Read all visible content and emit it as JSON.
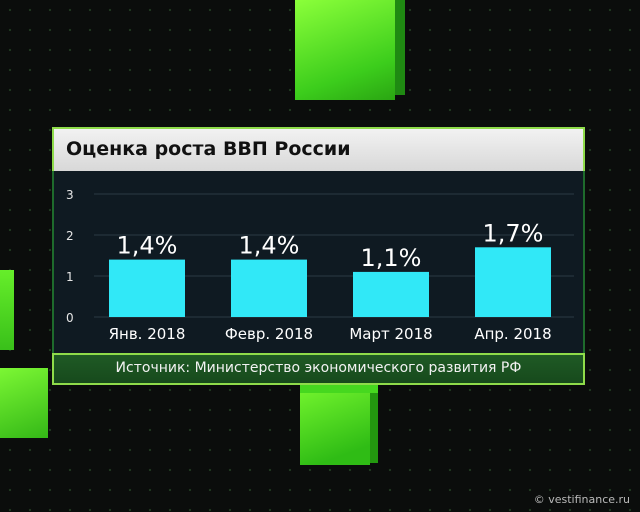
{
  "title": "Оценка роста ВВП России",
  "source": "Источник: Министерство экономического развития РФ",
  "watermark": "© vestifinance.ru",
  "colors": {
    "bar": "#31e8f7",
    "accent_green": "#8fdc4a",
    "panel_dark": "#0f1a22"
  },
  "chart_data": {
    "type": "bar",
    "title": "Оценка роста ВВП России",
    "categories": [
      "Янв. 2018",
      "Февр. 2018",
      "Март 2018",
      "Апр. 2018"
    ],
    "values": [
      1.4,
      1.4,
      1.1,
      1.7
    ],
    "data_labels": [
      "1,4%",
      "1,4%",
      "1,1%",
      "1,7%"
    ],
    "yticks": [
      "0",
      "1",
      "2",
      "3"
    ],
    "ylim": [
      0,
      3
    ],
    "grid": true,
    "xlabel": "",
    "ylabel": ""
  }
}
